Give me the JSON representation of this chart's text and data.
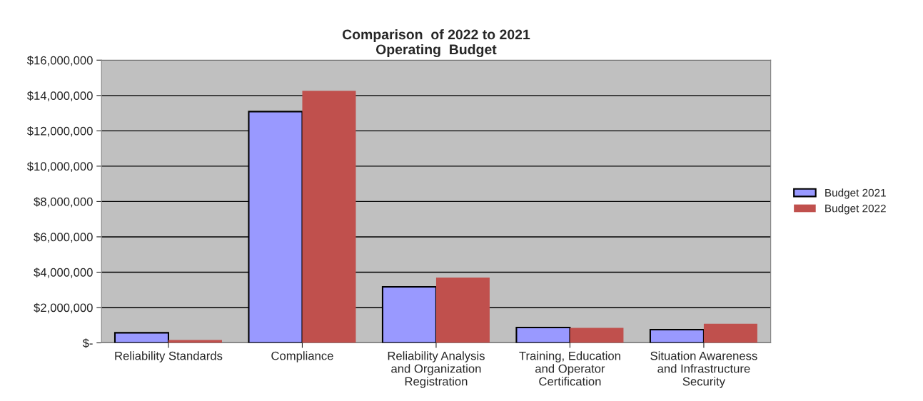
{
  "chart_data": {
    "type": "bar",
    "title": "Comparison  of 2022 to 2021\nOperating  Budget",
    "categories": [
      "Reliability Standards",
      "Compliance",
      "Reliability Analysis\nand Organization\nRegistration",
      "Training, Education\nand Operator\nCertification",
      "Situation Awareness\nand Infrastructure\nSecurity"
    ],
    "series": [
      {
        "name": "Budget 2021",
        "color": "#9999ff",
        "values": [
          570000,
          13090000,
          3170000,
          870000,
          750000
        ]
      },
      {
        "name": "Budget 2022",
        "color": "#c0504d",
        "values": [
          160000,
          14270000,
          3700000,
          850000,
          1080000
        ]
      }
    ],
    "ylim": [
      0,
      16000000
    ],
    "yticks": [
      {
        "value": 0,
        "label": "$-"
      },
      {
        "value": 2000000,
        "label": "$2,000,000"
      },
      {
        "value": 4000000,
        "label": "$4,000,000"
      },
      {
        "value": 6000000,
        "label": "$6,000,000"
      },
      {
        "value": 8000000,
        "label": "$8,000,000"
      },
      {
        "value": 10000000,
        "label": "$10,000,000"
      },
      {
        "value": 12000000,
        "label": "$12,000,000"
      },
      {
        "value": 14000000,
        "label": "$14,000,000"
      },
      {
        "value": 16000000,
        "label": "$16,000,000"
      }
    ],
    "grid": "y",
    "legend": "right"
  }
}
